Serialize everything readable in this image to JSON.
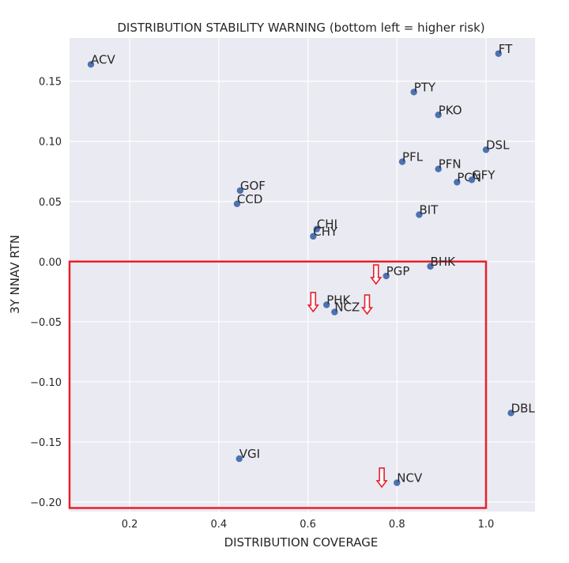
{
  "chart_data": {
    "type": "scatter",
    "title": "DISTRIBUTION STABILITY WARNING (bottom left = higher risk)",
    "xlabel": "DISTRIBUTION COVERAGE",
    "ylabel": "3Y NNAV RTN",
    "xlim": [
      0.065,
      1.11
    ],
    "ylim": [
      -0.208,
      0.186
    ],
    "xticks": [
      0.2,
      0.4,
      0.6,
      0.8,
      1.0
    ],
    "xtick_labels": [
      "0.2",
      "0.4",
      "0.6",
      "0.8",
      "1.0"
    ],
    "yticks": [
      -0.2,
      -0.15,
      -0.1,
      -0.05,
      0.0,
      0.05,
      0.1,
      0.15
    ],
    "ytick_labels": [
      "−0.20",
      "−0.15",
      "−0.10",
      "−0.05",
      "0.00",
      "0.05",
      "0.10",
      "0.15"
    ],
    "grid": true,
    "background": "#eaeaf2",
    "marker_color": "#4c72b0",
    "highlight_color": "#e8202a",
    "points": [
      {
        "label": "ACV",
        "x": 0.113,
        "y": 0.164
      },
      {
        "label": "FT",
        "x": 1.028,
        "y": 0.173
      },
      {
        "label": "PTY",
        "x": 0.838,
        "y": 0.141
      },
      {
        "label": "PKO",
        "x": 0.893,
        "y": 0.122
      },
      {
        "label": "DSL",
        "x": 1.0,
        "y": 0.093
      },
      {
        "label": "PFL",
        "x": 0.812,
        "y": 0.083
      },
      {
        "label": "PFN",
        "x": 0.893,
        "y": 0.077
      },
      {
        "label": "PCN",
        "x": 0.935,
        "y": 0.066
      },
      {
        "label": "GFY",
        "x": 0.968,
        "y": 0.068
      },
      {
        "label": "GOF",
        "x": 0.448,
        "y": 0.059
      },
      {
        "label": "CCD",
        "x": 0.441,
        "y": 0.048
      },
      {
        "label": "BIT",
        "x": 0.85,
        "y": 0.039
      },
      {
        "label": "CHI",
        "x": 0.62,
        "y": 0.027
      },
      {
        "label": "CHY",
        "x": 0.612,
        "y": 0.021
      },
      {
        "label": "BHK",
        "x": 0.875,
        "y": -0.004
      },
      {
        "label": "PGP",
        "x": 0.776,
        "y": -0.012
      },
      {
        "label": "PHK",
        "x": 0.642,
        "y": -0.036
      },
      {
        "label": "NCZ",
        "x": 0.66,
        "y": -0.042
      },
      {
        "label": "DBL",
        "x": 1.056,
        "y": -0.126
      },
      {
        "label": "VGI",
        "x": 0.446,
        "y": -0.164
      },
      {
        "label": "NCV",
        "x": 0.8,
        "y": -0.184
      }
    ],
    "risk_zone": {
      "x": [
        0.065,
        1.0
      ],
      "y": [
        -0.205,
        0.0
      ]
    },
    "warning_arrows": [
      {
        "x": 0.612,
        "y": -0.035
      },
      {
        "x": 0.733,
        "y": -0.037
      },
      {
        "x": 0.753,
        "y": -0.012
      },
      {
        "x": 0.766,
        "y": -0.181
      }
    ]
  }
}
